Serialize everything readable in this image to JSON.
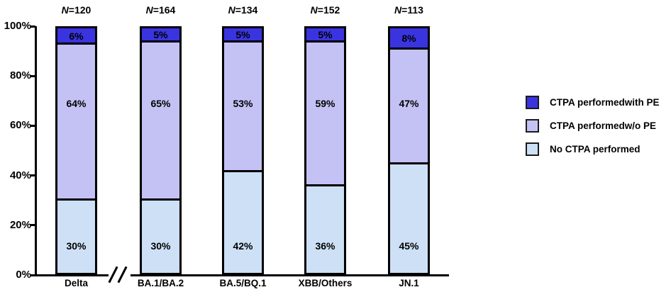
{
  "chart_data": {
    "type": "bar",
    "stacked": true,
    "title": "",
    "categories": [
      "Delta",
      "BA.1/BA.2",
      "BA.5/BQ.1",
      "XBB/Others",
      "JN.1"
    ],
    "n_labels": [
      "N=120",
      "N=164",
      "N=134",
      "N=152",
      "N=113"
    ],
    "series": [
      {
        "name": "No CTPA performed",
        "color": "#cde0f6",
        "values": [
          30,
          30,
          42,
          36,
          45
        ]
      },
      {
        "name": "CTPA performedw/o PE",
        "color": "#c4c2f4",
        "values": [
          64,
          65,
          53,
          59,
          47
        ]
      },
      {
        "name": "CTPA performedwith PE",
        "color": "#3a34e0",
        "values": [
          6,
          5,
          5,
          5,
          8
        ]
      }
    ],
    "value_suffix": "%",
    "y_ticks": [
      {
        "label": "100%",
        "value": 100
      },
      {
        "label": "80%",
        "value": 80
      },
      {
        "label": "60%",
        "value": 60
      },
      {
        "label": "40%",
        "value": 40
      },
      {
        "label": "20%",
        "value": 20
      },
      {
        "label": "0%",
        "value": 0
      }
    ],
    "ylim": [
      0,
      100
    ],
    "grid": false,
    "axis_break": {
      "between": [
        "Delta",
        "BA.1/BA.2"
      ],
      "symbol": "//"
    },
    "legend": {
      "position": "right",
      "items": [
        {
          "label": "CTPA performedwith PE",
          "color": "#3a34e0"
        },
        {
          "label": "CTPA performedw/o PE",
          "color": "#c4c2f4"
        },
        {
          "label": "No CTPA performed",
          "color": "#cde0f6"
        }
      ]
    },
    "bar_border_color": "#000000",
    "text_color": "#000000",
    "background_color": "#ffffff"
  }
}
